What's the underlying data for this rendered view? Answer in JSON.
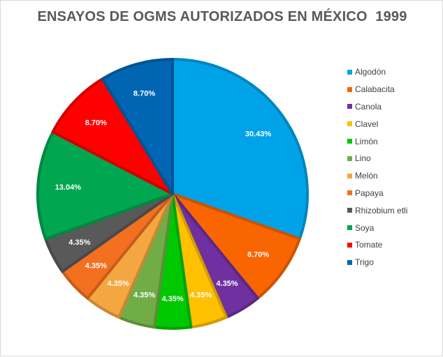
{
  "chart_data": {
    "type": "pie",
    "title": "ENSAYOS DE OGMS AUTORIZADOS EN MÉXICO  1999",
    "legend_position": "right",
    "slices": [
      {
        "label": "Algodón",
        "value": 30.43,
        "display": "30.43%",
        "color": "#00a3e8"
      },
      {
        "label": "Calabacita",
        "value": 8.7,
        "display": "8.70%",
        "color": "#f96500"
      },
      {
        "label": "Canola",
        "value": 4.35,
        "display": "4.35%",
        "color": "#7030a0"
      },
      {
        "label": "Clavel",
        "value": 4.35,
        "display": "4.35%",
        "color": "#ffc000"
      },
      {
        "label": "Limón",
        "value": 4.35,
        "display": "4.35%",
        "color": "#00c800"
      },
      {
        "label": "Lino",
        "value": 4.35,
        "display": "4.35%",
        "color": "#70ad47"
      },
      {
        "label": "Melón",
        "value": 4.35,
        "display": "4.35%",
        "color": "#f4a640"
      },
      {
        "label": "Papaya",
        "value": 4.35,
        "display": "4.35%",
        "color": "#f37021"
      },
      {
        "label": "Rhizobium etli",
        "value": 4.35,
        "display": "4.35%",
        "color": "#595959"
      },
      {
        "label": "Soya",
        "value": 13.04,
        "display": "13.04%",
        "color": "#00a650"
      },
      {
        "label": "Tomate",
        "value": 8.7,
        "display": "8.70%",
        "color": "#ff0000"
      },
      {
        "label": "Trigo",
        "value": 8.7,
        "display": "8.70%",
        "color": "#0066b3"
      }
    ]
  }
}
